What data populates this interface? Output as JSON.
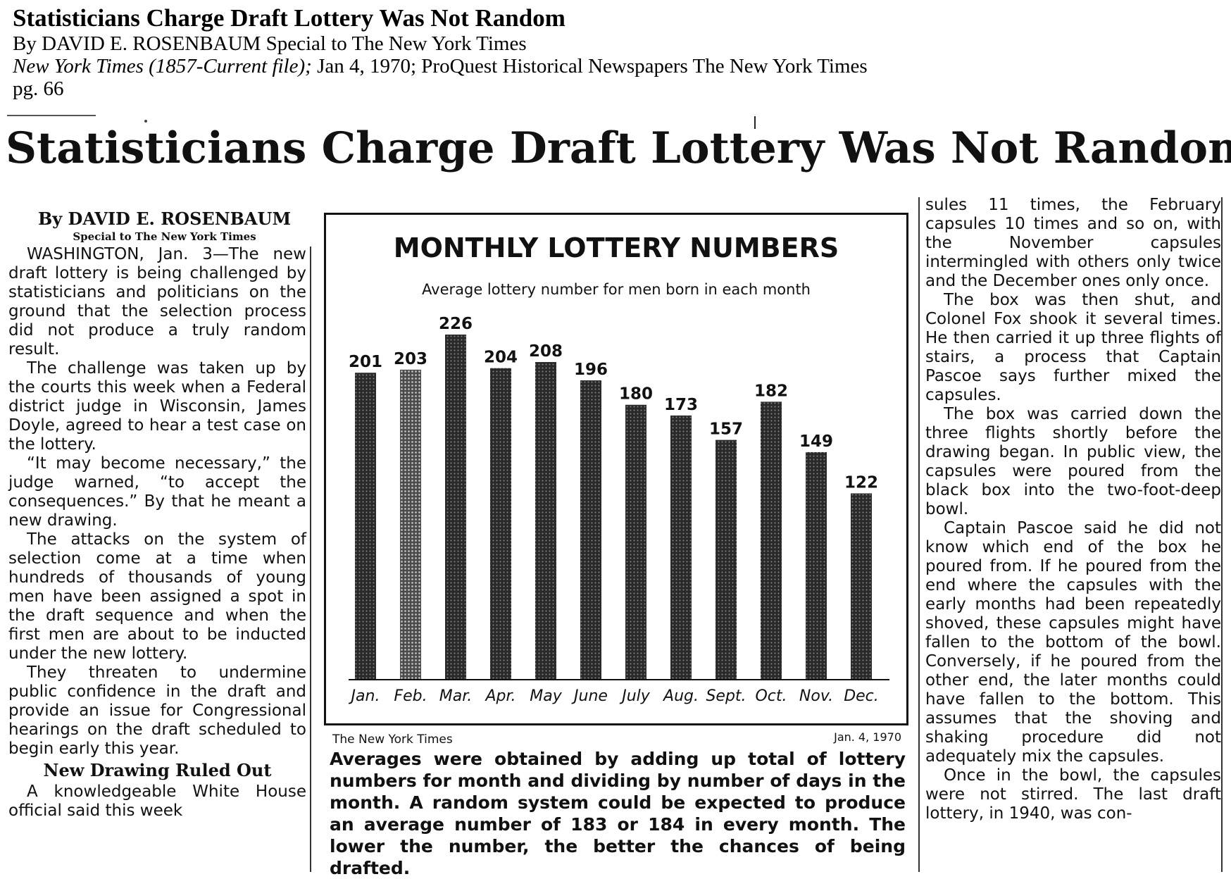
{
  "citation": {
    "title": "Statisticians Charge Draft Lottery Was Not Random",
    "byline": "By DAVID E. ROSENBAUM Special to The New York Times",
    "source_italic": "New York Times  (1857-Current file);",
    "source_rest": " Jan 4, 1970; ProQuest Historical Newspapers The New York Times",
    "page": "pg. 66"
  },
  "headline": "Statisticians Charge Draft Lottery Was Not Random",
  "article": {
    "byline": "By DAVID E. ROSENBAUM",
    "byline_sub": "Special to The New York Times",
    "col1_paragraphs": [
      "WASHINGTON, Jan. 3—The new draft lottery is being challenged by statisticians and politicians on the ground that the selection process did not produce a truly random result.",
      "The challenge was taken up by the courts this week when a Federal district judge in Wisconsin, James Doyle, agreed to hear a test case on the lottery.",
      "“It may become necessary,” the judge warned, “to accept the consequences.” By that he meant a new drawing.",
      "The attacks on the system of selection come at a time when hundreds of thousands of young men have been assigned a spot in the draft sequence and when the first men are about to be inducted under the new lottery.",
      "They threaten to undermine public confidence in the draft and provide an issue for Congressional hearings on the draft scheduled to begin early this year."
    ],
    "subhead": "New Drawing Ruled Out",
    "col1_tail": "A knowledgeable White House official said this week",
    "col3_paragraphs": [
      "sules 11 times, the February capsules 10 times and so on, with the November capsules intermingled with others only twice and the December ones only once.",
      "The box was then shut, and Colonel Fox shook it several times. He then carried it up three flights of stairs, a process that Captain Pascoe says further mixed the capsules.",
      "The box was carried down the three flights shortly before the drawing began. In public view, the capsules were poured from the black box into the two-foot-deep bowl.",
      "Captain Pascoe said he did not know which end of the box he poured from. If he poured from the end where the capsules with the early months had been repeatedly shoved, these capsules might have fallen to the bottom of the bowl. Conversely, if he poured from the other end, the later months could have fallen to the bottom. This assumes that the shoving and shaking procedure did not adequately mix the capsules.",
      "Once in the bowl, the capsules were not stirred. The last draft lottery, in 1940, was con-"
    ]
  },
  "chart_data": {
    "type": "bar",
    "title": "MONTHLY LOTTERY NUMBERS",
    "subtitle": "Average lottery number for men born in each month",
    "categories": [
      "Jan.",
      "Feb.",
      "Mar.",
      "Apr.",
      "May",
      "June",
      "July",
      "Aug.",
      "Sept.",
      "Oct.",
      "Nov.",
      "Dec."
    ],
    "values": [
      201,
      203,
      226,
      204,
      208,
      196,
      180,
      173,
      157,
      182,
      149,
      122
    ],
    "value_labels": [
      "201",
      "203",
      "226",
      "204",
      "208",
      "196",
      "180",
      "173",
      "157",
      "182",
      "149",
      "122"
    ],
    "grid": false,
    "bar_color": "#2a2a2a"
  },
  "chart_credit": {
    "left": "The New York Times",
    "right": "Jan. 4, 1970"
  },
  "caption": "Averages were obtained by adding up total of lottery numbers for month and dividing by number of days in the month. A random system could be expected to produce an average number of 183 or 184 in every month. The lower the number, the better the chances of being drafted."
}
